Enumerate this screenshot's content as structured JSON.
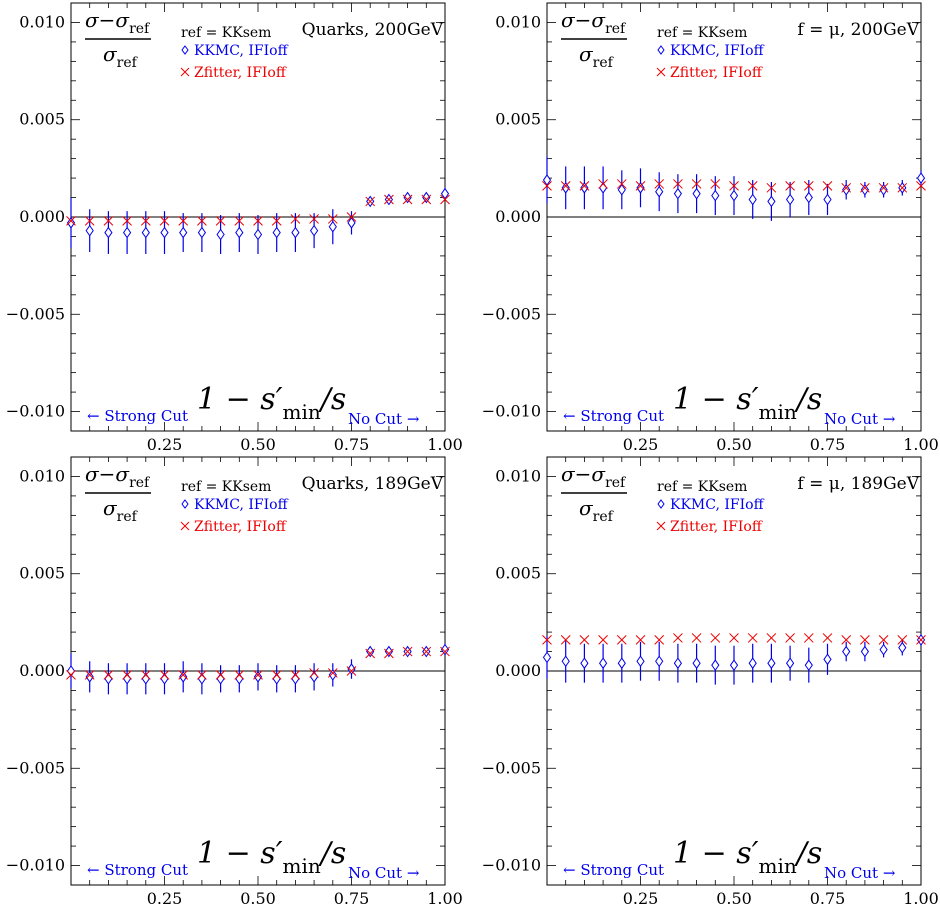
{
  "colors": {
    "kkmc": "#0000ee",
    "zfitter": "#ee0000",
    "axis": "#000000"
  },
  "labels": {
    "ylabel_num": "σ−σ",
    "ylabel_num_sub": "ref",
    "ylabel_den": "σ",
    "ylabel_den_sub": "ref",
    "xlabel_main": "1 − s′",
    "xlabel_sub": "min",
    "xlabel_tail": "/s",
    "strong_cut": "← Strong Cut",
    "no_cut": "No Cut →"
  },
  "chart_data": [
    {
      "type": "scatter",
      "title": "Quarks, 200GeV",
      "ref": "ref = KKsem",
      "xlim": [
        0,
        1
      ],
      "ylim": [
        -0.011,
        0.011
      ],
      "xticks": [
        "0.25",
        "0.50",
        "0.75",
        "1.00"
      ],
      "yticks": [
        "0.010",
        "0.005",
        "0.000",
        "−0.005",
        "−0.010"
      ],
      "x": [
        0.0,
        0.05,
        0.1,
        0.15,
        0.2,
        0.25,
        0.3,
        0.35,
        0.4,
        0.45,
        0.5,
        0.55,
        0.6,
        0.65,
        0.7,
        0.75,
        0.8,
        0.85,
        0.9,
        0.95,
        1.0
      ],
      "series": [
        {
          "name": "KKMC, IFIoff",
          "marker": "diamond",
          "values": [
            -0.0003,
            -0.0007,
            -0.0008,
            -0.0008,
            -0.0008,
            -0.0008,
            -0.0008,
            -0.0008,
            -0.0009,
            -0.0008,
            -0.0009,
            -0.0008,
            -0.0008,
            -0.0007,
            -0.0005,
            -0.0003,
            0.0008,
            0.0009,
            0.001,
            0.001,
            0.0012
          ],
          "errors": [
            0.0013,
            0.0011,
            0.0011,
            0.0011,
            0.0011,
            0.0011,
            0.001,
            0.001,
            0.001,
            0.001,
            0.001,
            0.001,
            0.001,
            0.0009,
            0.0009,
            0.0006,
            0.0002,
            0.0002,
            0.0002,
            0.0002,
            0.0003
          ]
        },
        {
          "name": "Zfitter, IFIoff",
          "marker": "cross",
          "values": [
            -0.0002,
            -0.0002,
            -0.0002,
            -0.0002,
            -0.0002,
            -0.0002,
            -0.0002,
            -0.0002,
            -0.0002,
            -0.0002,
            -0.0002,
            -0.0002,
            -0.0001,
            -0.0001,
            -0.0001,
            0.0,
            0.0008,
            0.0009,
            0.0009,
            0.0009,
            0.0009
          ]
        }
      ]
    },
    {
      "type": "scatter",
      "title": "f = μ, 200GeV",
      "ref": "ref = KKsem",
      "xlim": [
        0,
        1
      ],
      "ylim": [
        -0.011,
        0.011
      ],
      "xticks": [
        "0.25",
        "0.50",
        "0.75",
        "1.00"
      ],
      "yticks": [
        "0.010",
        "0.005",
        "0.000",
        "−0.005",
        "−0.010"
      ],
      "x": [
        0.0,
        0.05,
        0.1,
        0.15,
        0.2,
        0.25,
        0.3,
        0.35,
        0.4,
        0.45,
        0.5,
        0.55,
        0.6,
        0.65,
        0.7,
        0.75,
        0.8,
        0.85,
        0.9,
        0.95,
        1.0
      ],
      "series": [
        {
          "name": "KKMC, IFIoff",
          "marker": "diamond",
          "values": [
            0.0019,
            0.0015,
            0.0015,
            0.0015,
            0.0014,
            0.0015,
            0.0013,
            0.0012,
            0.0012,
            0.0011,
            0.0011,
            0.0009,
            0.0008,
            0.0009,
            0.001,
            0.0009,
            0.0014,
            0.0014,
            0.0014,
            0.0015,
            0.002
          ],
          "errors": [
            0.0012,
            0.0011,
            0.0011,
            0.0011,
            0.001,
            0.001,
            0.001,
            0.001,
            0.001,
            0.001,
            0.001,
            0.001,
            0.001,
            0.0009,
            0.0009,
            0.0008,
            0.0005,
            0.0004,
            0.0004,
            0.0004,
            0.0004
          ]
        },
        {
          "name": "Zfitter, IFIoff",
          "marker": "cross",
          "values": [
            0.0016,
            0.0016,
            0.0016,
            0.0017,
            0.0017,
            0.0016,
            0.0017,
            0.0017,
            0.0017,
            0.0017,
            0.0016,
            0.0016,
            0.0015,
            0.0016,
            0.0016,
            0.0016,
            0.0015,
            0.0015,
            0.0015,
            0.0015,
            0.0016
          ]
        }
      ]
    },
    {
      "type": "scatter",
      "title": "Quarks, 189GeV",
      "ref": "ref = KKsem",
      "xlim": [
        0,
        1
      ],
      "ylim": [
        -0.011,
        0.011
      ],
      "xticks": [
        "0.25",
        "0.50",
        "0.75",
        "1.00"
      ],
      "yticks": [
        "0.010",
        "0.005",
        "0.000",
        "−0.005",
        "−0.010"
      ],
      "x": [
        0.0,
        0.05,
        0.1,
        0.15,
        0.2,
        0.25,
        0.3,
        0.35,
        0.4,
        0.45,
        0.5,
        0.55,
        0.6,
        0.65,
        0.7,
        0.75,
        0.8,
        0.85,
        0.9,
        0.95,
        1.0
      ],
      "series": [
        {
          "name": "KKMC, IFIoff",
          "marker": "diamond",
          "values": [
            0.0,
            -0.0003,
            -0.0004,
            -0.0004,
            -0.0004,
            -0.0004,
            -0.0003,
            -0.0004,
            -0.0004,
            -0.0004,
            -0.0003,
            -0.0004,
            -0.0004,
            -0.0003,
            -0.0002,
            0.0001,
            0.001,
            0.001,
            0.001,
            0.001,
            0.0011
          ],
          "errors": [
            0.0009,
            0.0008,
            0.0008,
            0.0008,
            0.0008,
            0.0008,
            0.0008,
            0.0008,
            0.0007,
            0.0007,
            0.0007,
            0.0007,
            0.0007,
            0.0007,
            0.0006,
            0.0005,
            0.0002,
            0.0002,
            0.0002,
            0.0002,
            0.0003
          ]
        },
        {
          "name": "Zfitter, IFIoff",
          "marker": "cross",
          "values": [
            -0.0002,
            -0.0002,
            -0.0002,
            -0.0002,
            -0.0002,
            -0.0002,
            -0.0002,
            -0.0002,
            -0.0002,
            -0.0002,
            -0.0002,
            -0.0002,
            -0.0002,
            -0.0001,
            -0.0001,
            0.0,
            0.0009,
            0.0009,
            0.001,
            0.001,
            0.001
          ]
        }
      ]
    },
    {
      "type": "scatter",
      "title": "f = μ, 189GeV",
      "ref": "ref = KKsem",
      "xlim": [
        0,
        1
      ],
      "ylim": [
        -0.011,
        0.011
      ],
      "xticks": [
        "0.25",
        "0.50",
        "0.75",
        "1.00"
      ],
      "yticks": [
        "0.010",
        "0.005",
        "0.000",
        "−0.005",
        "−0.010"
      ],
      "x": [
        0.0,
        0.05,
        0.1,
        0.15,
        0.2,
        0.25,
        0.3,
        0.35,
        0.4,
        0.45,
        0.5,
        0.55,
        0.6,
        0.65,
        0.7,
        0.75,
        0.8,
        0.85,
        0.9,
        0.95,
        1.0
      ],
      "series": [
        {
          "name": "KKMC, IFIoff",
          "marker": "diamond",
          "values": [
            0.0007,
            0.0005,
            0.0004,
            0.0004,
            0.0004,
            0.0005,
            0.0005,
            0.0004,
            0.0004,
            0.0003,
            0.0003,
            0.0004,
            0.0004,
            0.0004,
            0.0003,
            0.0006,
            0.001,
            0.001,
            0.0011,
            0.0012,
            0.0016
          ],
          "errors": [
            0.0011,
            0.0011,
            0.001,
            0.001,
            0.001,
            0.001,
            0.001,
            0.001,
            0.001,
            0.001,
            0.001,
            0.001,
            0.001,
            0.0009,
            0.0009,
            0.0008,
            0.0005,
            0.0005,
            0.0004,
            0.0004,
            0.0003
          ]
        },
        {
          "name": "Zfitter, IFIoff",
          "marker": "cross",
          "values": [
            0.0016,
            0.0016,
            0.0016,
            0.0016,
            0.0016,
            0.0016,
            0.0016,
            0.0017,
            0.0017,
            0.0017,
            0.0017,
            0.0017,
            0.0017,
            0.0017,
            0.0017,
            0.0017,
            0.0016,
            0.0016,
            0.0016,
            0.0016,
            0.0016
          ]
        }
      ]
    }
  ]
}
